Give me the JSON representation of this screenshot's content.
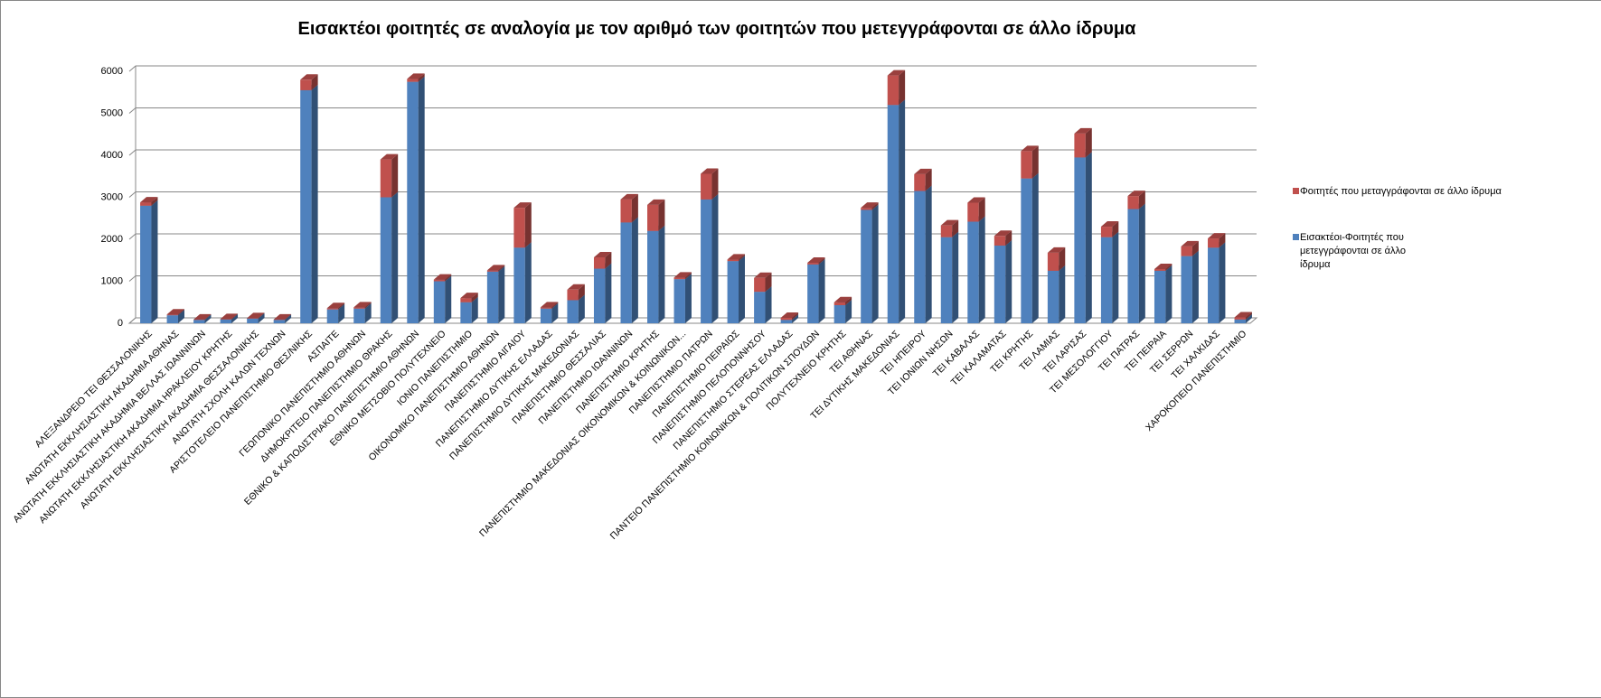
{
  "chart_data": {
    "type": "stacked_bar",
    "title": "Εισακτέοι φοιτητές σε αναλογία με τον αριθμό των φοιτητών που μετεγγράφονται σε άλλο ίδρυμα",
    "categories": [
      "ΑΛΕΞΑΝΔΡΕΙΟ ΤΕΙ ΘΕΣΣΑΛΟΝΙΚΗΣ",
      "ΑΝΩΤΑΤΗ ΕΚΚΛΗΣΙΑΣΤΙΚΗ ΑΚΑΔΗΜΙΑ ΑΘΗΝΑΣ",
      "ΑΝΩΤΑΤΗ ΕΚΚΛΗΣΙΑΣΤΙΚΗ ΑΚΑΔΗΜΙΑ ΒΕΛΛΑΣ ΙΩΑΝΝΙΝΩΝ",
      "ΑΝΩΤΑΤΗ ΕΚΚΛΗΣΙΑΣΤΙΚΗ ΑΚΑΔΗΜΙΑ ΗΡΑΚΛΕΙΟΥ ΚΡΗΤΗΣ",
      "ΑΝΩΤΑΤΗ ΕΚΚΛΗΣΙΑΣΤΙΚΗ ΑΚΑΔΗΜΙΑ ΘΕΣΣΑΛΟΝΙΚΗΣ",
      "ΑΝΩΤΑΤΗ ΣΧΟΛΗ ΚΑΛΩΝ ΤΕΧΝΩΝ",
      "ΑΡΙΣΤΟΤΕΛΕΙΟ ΠΑΝΕΠΙΣΤΗΜΙΟ ΘΕΣ/ΝΙΚΗΣ",
      "ΑΣΠΑΙΤΕ",
      "ΓΕΩΠΟΝΙΚΟ ΠΑΝΕΠΙΣΤΗΜΙΟ ΑΘΗΝΩΝ",
      "ΔΗΜΟΚΡΙΤΕΙΟ ΠΑΝΕΠΙΣΤΗΜΙΟ ΘΡΑΚΗΣ",
      "ΕΘΝΙΚΟ & ΚΑΠΟΔΙΣΤΡΙΑΚΟ ΠΑΝΕΠΙΣΤΗΜΙΟ ΑΘΗΝΩΝ",
      "ΕΘΝΙΚΟ ΜΕΤΣΟΒΙΟ ΠΟΛΥΤΕΧΝΕΙΟ",
      "ΙΟΝΙΟ ΠΑΝΕΠΙΣΤΗΜΙΟ",
      "ΟΙΚΟΝΟΜΙΚΟ ΠΑΝΕΠΙΣΤΗΜΙΟ ΑΘΗΝΩΝ",
      "ΠΑΝΕΠΙΣΤΗΜΙΟ ΑΙΓΑΙΟΥ",
      "ΠΑΝΕΠΙΣΤΗΜΙΟ ΔΥΤΙΚΗΣ ΕΛΛΑΔΑΣ",
      "ΠΑΝΕΠΙΣΤΗΜΙΟ ΔΥΤΙΚΗΣ ΜΑΚΕΔΟΝΙΑΣ",
      "ΠΑΝΕΠΙΣΤΗΜΙΟ ΘΕΣΣΑΛΙΑΣ",
      "ΠΑΝΕΠΙΣΤΗΜΙΟ ΙΩΑΝΝΙΝΩΝ",
      "ΠΑΝΕΠΙΣΤΗΜΙΟ ΚΡΗΤΗΣ",
      "ΠΑΝΕΠΙΣΤΗΜΙΟ ΜΑΚΕΔΟΝΙΑΣ ΟΙΚΟΝΟΜΙΚΩΝ & ΚΟΙΝΩΝΙΚΩΝ...",
      "ΠΑΝΕΠΙΣΤΗΜΙΟ ΠΑΤΡΩΝ",
      "ΠΑΝΕΠΙΣΤΗΜΙΟ ΠΕΙΡΑΙΩΣ",
      "ΠΑΝΕΠΙΣΤΗΜΙΟ ΠΕΛΟΠΟΝΝΗΣΟΥ",
      "ΠΑΝΕΠΙΣΤΗΜΙΟ ΣΤΕΡΕΑΣ ΕΛΛΑΔΑΣ",
      "ΠΑΝΤΕΙΟ ΠΑΝΕΠΙΣΤΗΜΙΟ ΚΟΙΝΩΝΙΚΩΝ & ΠΟΛΙΤΙΚΩΝ ΣΠΟΥΔΩΝ",
      "ΠΟΛΥΤΕΧΝΕΙΟ ΚΡΗΤΗΣ",
      "ΤΕΙ ΑΘΗΝΑΣ",
      "ΤΕΙ ΔΥΤΙΚΗΣ ΜΑΚΕΔΟΝΙΑΣ",
      "ΤΕΙ ΗΠΕΙΡΟΥ",
      "ΤΕΙ ΙΟΝΙΩΝ ΝΗΣΩΝ",
      "ΤΕΙ ΚΑΒΑΛΑΣ",
      "ΤΕΙ ΚΑΛΑΜΑΤΑΣ",
      "ΤΕΙ ΚΡΗΤΗΣ",
      "ΤΕΙ ΛΑΜΙΑΣ",
      "ΤΕΙ ΛΑΡΙΣΑΣ",
      "ΤΕΙ ΜΕΣΟΛΟΓΓΙΟΥ",
      "ΤΕΙ ΠΑΤΡΑΣ",
      "ΤΕΙ ΠΕΙΡΑΙΑ",
      "ΤΕΙ ΣΕΡΡΩΝ",
      "ΤΕΙ ΧΑΛΚΙΔΑΣ",
      "ΧΑΡΟΚΟΠΕΙΟ ΠΑΝΕΠΙΣΤΗΜΙΟ"
    ],
    "series": [
      {
        "name": "Εισακτέοι-Φοιτητές που μετεγγράφονται σε άλλο ίδρυμα",
        "color": "#4f81bd",
        "values": [
          2800,
          190,
          80,
          90,
          110,
          80,
          5550,
          330,
          350,
          3000,
          5750,
          1000,
          500,
          1230,
          1800,
          350,
          550,
          1300,
          2400,
          2200,
          1050,
          2950,
          1480,
          750,
          80,
          1400,
          430,
          2700,
          5200,
          3150,
          2050,
          2420,
          1850,
          3450,
          1250,
          3950,
          2050,
          2720,
          1250,
          1600,
          1800,
          90
        ]
      },
      {
        "name": "Φοιτητές που μεταγγράφονται σε άλλο ίδρυμα",
        "color": "#c0504d",
        "values": [
          80,
          20,
          10,
          10,
          10,
          10,
          250,
          30,
          30,
          900,
          70,
          40,
          100,
          30,
          950,
          30,
          250,
          270,
          550,
          620,
          40,
          610,
          40,
          330,
          50,
          40,
          70,
          50,
          700,
          400,
          280,
          450,
          230,
          650,
          430,
          570,
          250,
          310,
          40,
          230,
          220,
          50
        ]
      }
    ],
    "ylim": [
      0,
      6000
    ],
    "yticks": [
      0,
      1000,
      2000,
      3000,
      4000,
      5000,
      6000
    ],
    "grid": true,
    "legend": "right"
  }
}
